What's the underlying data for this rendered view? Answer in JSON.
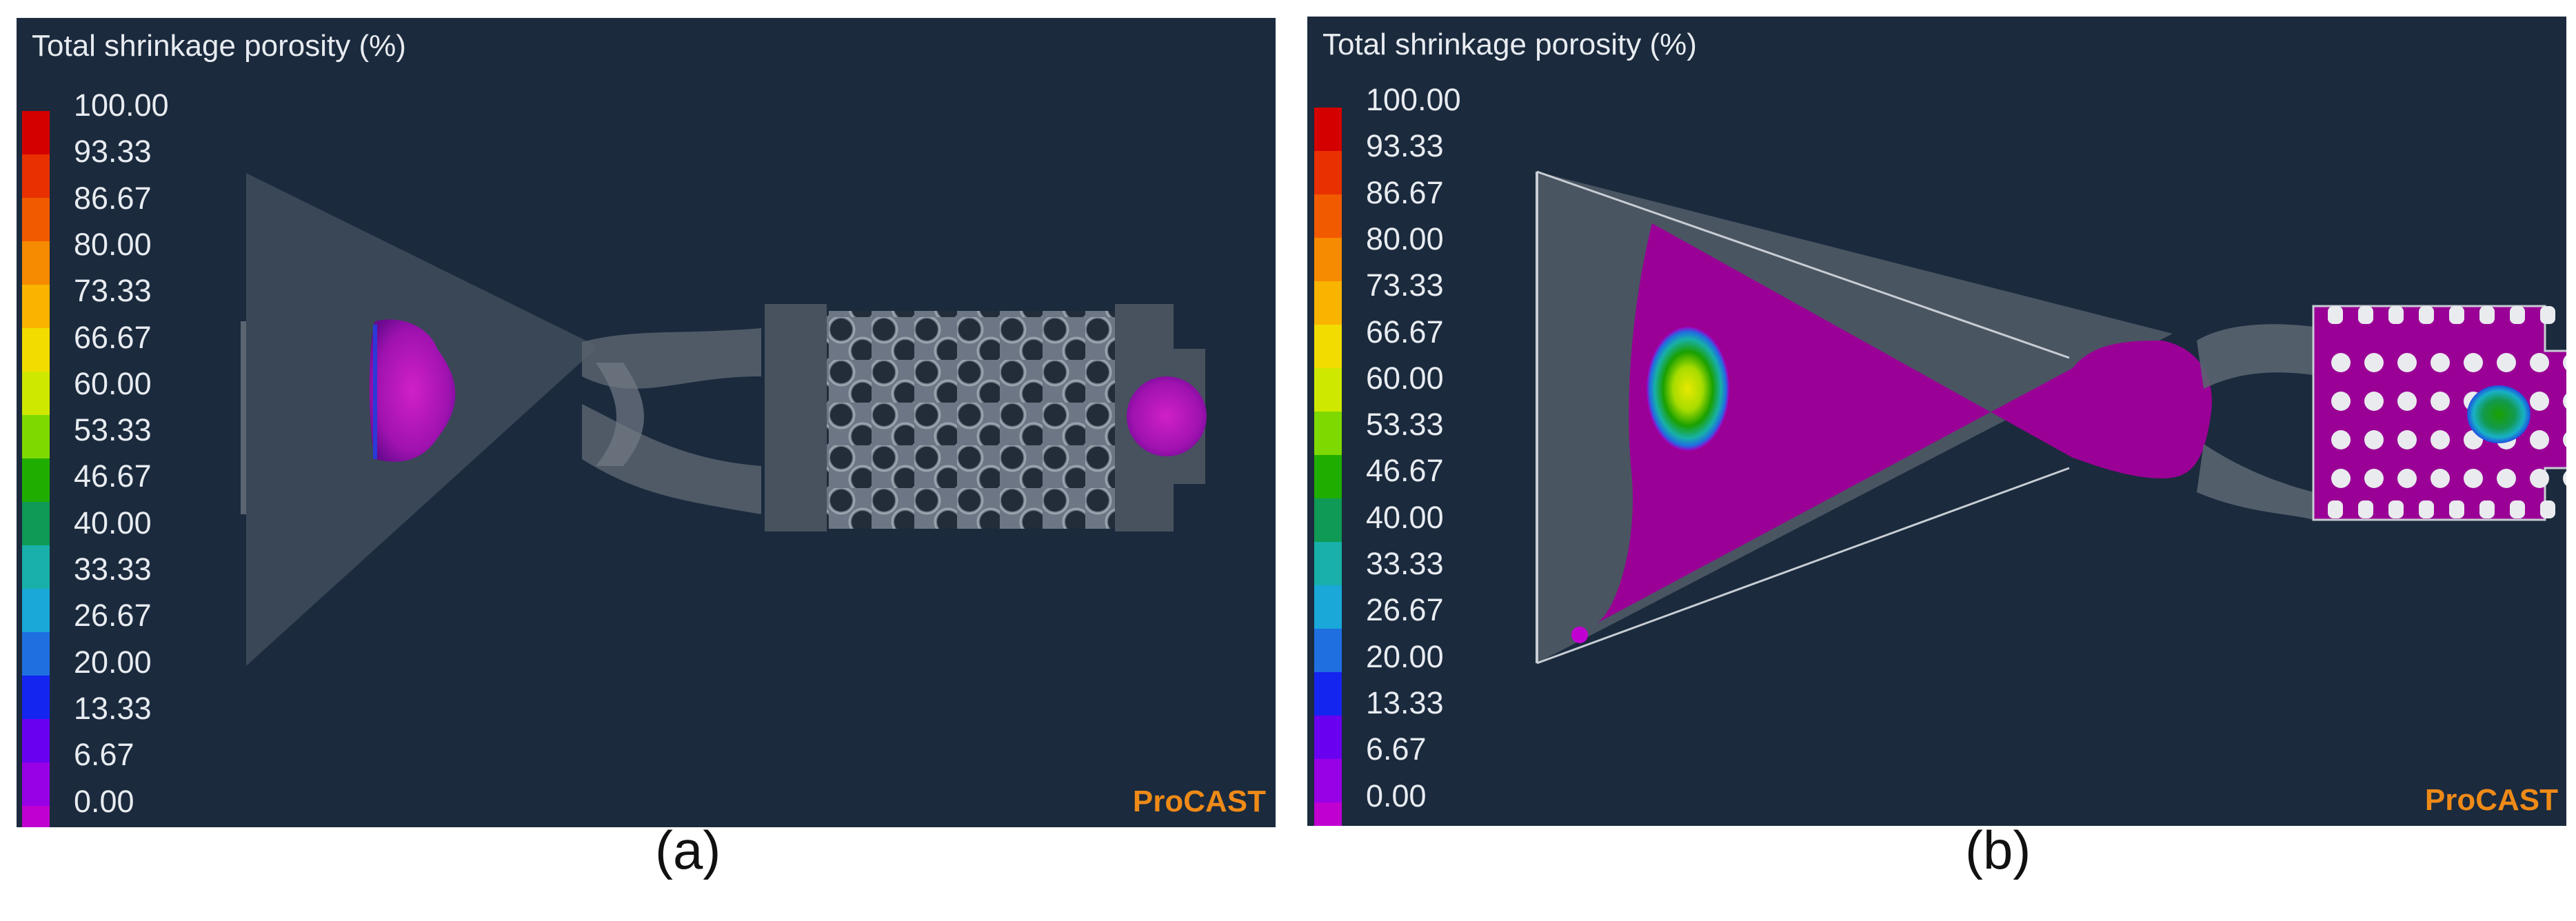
{
  "panels": [
    {
      "title": "Total shrinkage porosity (%)",
      "legend_ticks": [
        "100.00",
        "93.33",
        "86.67",
        "80.00",
        "73.33",
        "66.67",
        "60.00",
        "53.33",
        "46.67",
        "40.00",
        "33.33",
        "26.67",
        "20.00",
        "13.33",
        "6.67",
        "0.00"
      ],
      "brand": "ProCAST",
      "caption": "(a)"
    },
    {
      "title": "Total shrinkage porosity (%)",
      "legend_ticks": [
        "100.00",
        "93.33",
        "86.67",
        "80.00",
        "73.33",
        "66.67",
        "60.00",
        "53.33",
        "46.67",
        "40.00",
        "33.33",
        "26.67",
        "20.00",
        "13.33",
        "6.67",
        "0.00"
      ],
      "brand": "ProCAST",
      "caption": "(b)"
    }
  ],
  "colorbar": [
    "#d40000",
    "#e83000",
    "#f25a00",
    "#f68a00",
    "#f9b400",
    "#f2dc00",
    "#cfe800",
    "#7ed900",
    "#1fae00",
    "#0f9a55",
    "#18b0a8",
    "#1aa8d8",
    "#1f6fe0",
    "#1525f0",
    "#6a00f0",
    "#9800e6",
    "#c000d0"
  ],
  "colors": {
    "background": "#1b2a3d",
    "brand": "#ef8a17",
    "text": "#e8ecf1"
  }
}
